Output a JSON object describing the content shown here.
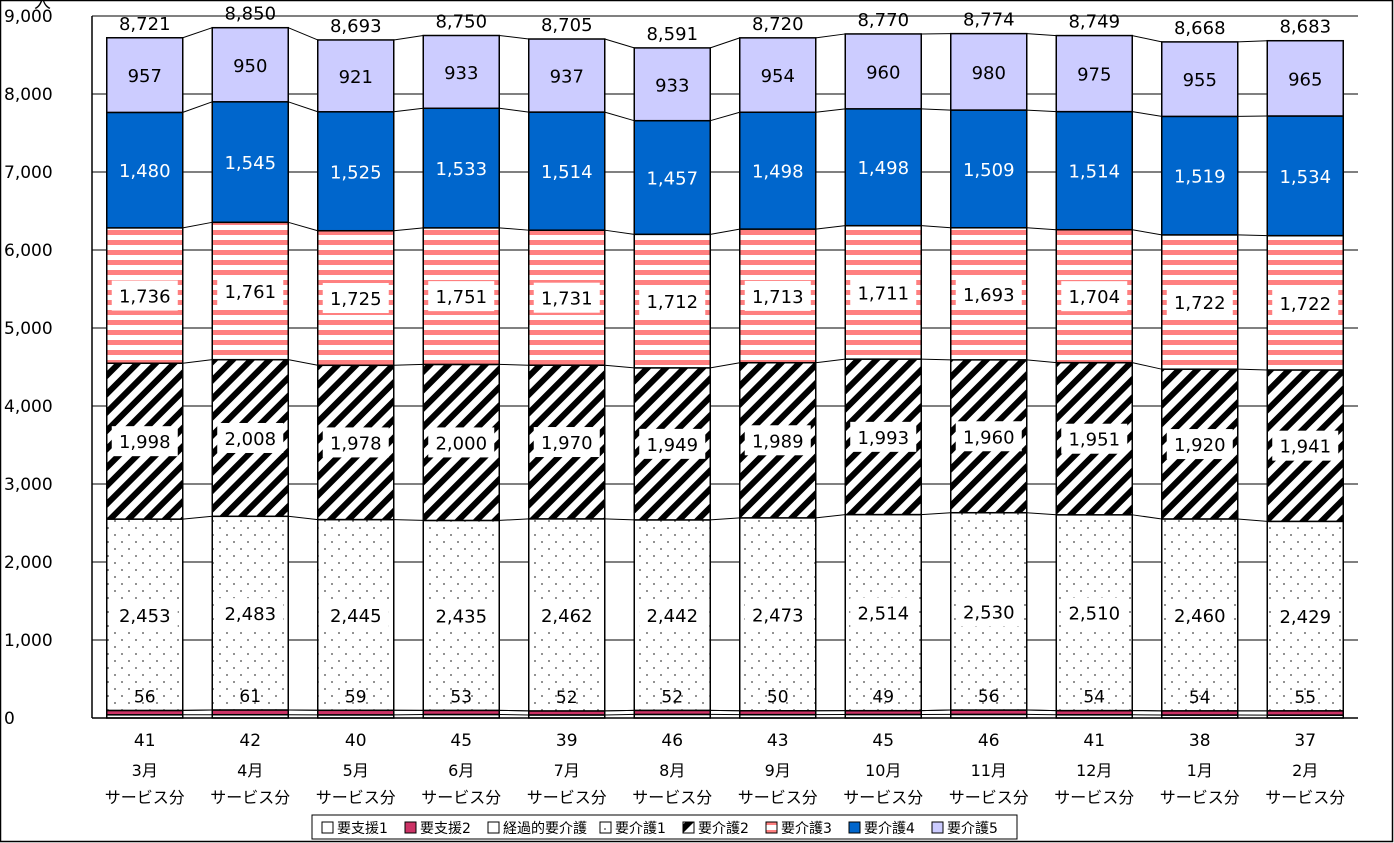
{
  "chart_data": {
    "type": "bar",
    "stacked": true,
    "categories": [
      [
        "3月",
        "サービス分"
      ],
      [
        "4月",
        "サービス分"
      ],
      [
        "5月",
        "サービス分"
      ],
      [
        "6月",
        "サービス分"
      ],
      [
        "7月",
        "サービス分"
      ],
      [
        "8月",
        "サービス分"
      ],
      [
        "9月",
        "サービス分"
      ],
      [
        "10月",
        "サービス分"
      ],
      [
        "11月",
        "サービス分"
      ],
      [
        "12月",
        "サービス分"
      ],
      [
        "1月",
        "サービス分"
      ],
      [
        "2月",
        "サービス分"
      ]
    ],
    "totals": [
      8721,
      8850,
      8693,
      8750,
      8705,
      8591,
      8720,
      8770,
      8774,
      8749,
      8668,
      8683
    ],
    "series": [
      {
        "name": "要支援1",
        "values": [
          41,
          42,
          40,
          45,
          39,
          46,
          43,
          45,
          46,
          41,
          38,
          37
        ],
        "color": "#ffffff",
        "pattern": "none"
      },
      {
        "name": "要支援2",
        "values": [
          56,
          61,
          59,
          53,
          52,
          52,
          50,
          49,
          56,
          54,
          54,
          55
        ],
        "color": "#cc3366",
        "pattern": "solid"
      },
      {
        "name": "経過的要介護",
        "values": [
          0,
          0,
          0,
          0,
          0,
          0,
          0,
          0,
          0,
          0,
          0,
          0
        ],
        "color": "#ffffff",
        "pattern": "none"
      },
      {
        "name": "要介護1",
        "values": [
          2453,
          2483,
          2445,
          2435,
          2462,
          2442,
          2473,
          2514,
          2530,
          2510,
          2460,
          2429
        ],
        "color": "#ffffff",
        "pattern": "dots"
      },
      {
        "name": "要介護2",
        "values": [
          1998,
          2008,
          1978,
          2000,
          1970,
          1949,
          1989,
          1993,
          1960,
          1951,
          1920,
          1941
        ],
        "color": "#000000",
        "pattern": "diagonal"
      },
      {
        "name": "要介護3",
        "values": [
          1736,
          1761,
          1725,
          1751,
          1731,
          1712,
          1713,
          1711,
          1693,
          1704,
          1722,
          1722
        ],
        "color": "#ff8080",
        "pattern": "horizontal"
      },
      {
        "name": "要介護4",
        "values": [
          1480,
          1545,
          1525,
          1533,
          1514,
          1457,
          1498,
          1498,
          1509,
          1514,
          1519,
          1534
        ],
        "color": "#0066cc",
        "pattern": "solid"
      },
      {
        "name": "要介護5",
        "values": [
          957,
          950,
          921,
          933,
          937,
          933,
          954,
          960,
          980,
          975,
          955,
          965
        ],
        "color": "#ccccff",
        "pattern": "solid"
      }
    ],
    "ylabel": "人",
    "ylim": [
      0,
      9000
    ],
    "yticks": [
      0,
      1000,
      2000,
      3000,
      4000,
      5000,
      6000,
      7000,
      8000,
      9000
    ],
    "grid": true,
    "legend_position": "bottom"
  }
}
